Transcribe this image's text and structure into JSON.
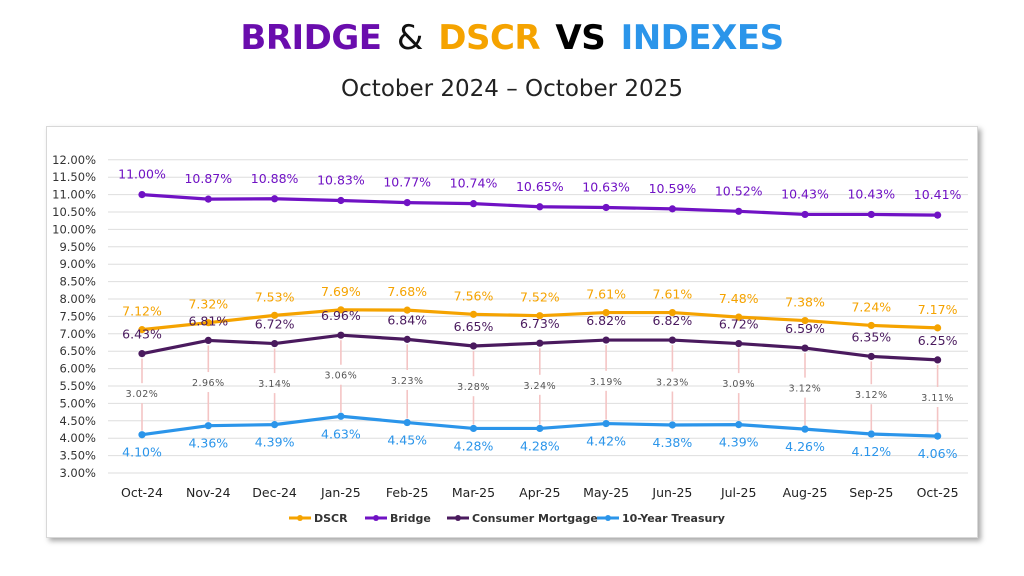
{
  "title": {
    "parts": [
      {
        "text": "BRIDGE",
        "color": "#6a0dad"
      },
      {
        "text": "&",
        "color": "#111111"
      },
      {
        "text": "DSCR",
        "color": "#f5a300"
      },
      {
        "text": "VS",
        "color": "#000000"
      },
      {
        "text": "INDEXES",
        "color": "#2b95ea"
      }
    ],
    "subtitle": "October 2024 – October 2025"
  },
  "chart_data": {
    "type": "line",
    "title": "BRIDGE & DSCR VS INDEXES",
    "subtitle": "October 2024 – October 2025",
    "categories": [
      "Oct-24",
      "Nov-24",
      "Dec-24",
      "Jan-25",
      "Feb-25",
      "Mar-25",
      "Apr-25",
      "May-25",
      "Jun-25",
      "Jul-25",
      "Aug-25",
      "Sep-25",
      "Oct-25"
    ],
    "ylim": [
      3.0,
      12.0
    ],
    "ytick_step": 0.5,
    "y_tick_format": "percent-2dp",
    "grid": true,
    "legend_position": "bottom",
    "series": [
      {
        "name": "DSCR",
        "color": "#f5a300",
        "values": [
          7.12,
          7.32,
          7.53,
          7.69,
          7.68,
          7.56,
          7.52,
          7.61,
          7.61,
          7.48,
          7.38,
          7.24,
          7.17
        ]
      },
      {
        "name": "Bridge",
        "color": "#7012c4",
        "values": [
          11.0,
          10.87,
          10.88,
          10.83,
          10.77,
          10.74,
          10.65,
          10.63,
          10.59,
          10.52,
          10.43,
          10.43,
          10.41
        ]
      },
      {
        "name": "Consumer Mortgage",
        "color": "#4a1a5e",
        "values": [
          6.43,
          6.81,
          6.72,
          6.96,
          6.84,
          6.65,
          6.73,
          6.82,
          6.82,
          6.72,
          6.59,
          6.35,
          6.25
        ]
      },
      {
        "name": "10-Year Treasury",
        "color": "#2b95ea",
        "values": [
          4.1,
          4.36,
          4.39,
          4.63,
          4.45,
          4.28,
          4.28,
          4.42,
          4.38,
          4.39,
          4.26,
          4.12,
          4.06
        ]
      }
    ],
    "spread_labels": {
      "color": "#f4c4c4",
      "values": [
        3.02,
        2.96,
        3.14,
        3.06,
        3.23,
        3.28,
        3.24,
        3.19,
        3.23,
        3.09,
        3.12,
        3.12,
        3.11
      ]
    }
  }
}
